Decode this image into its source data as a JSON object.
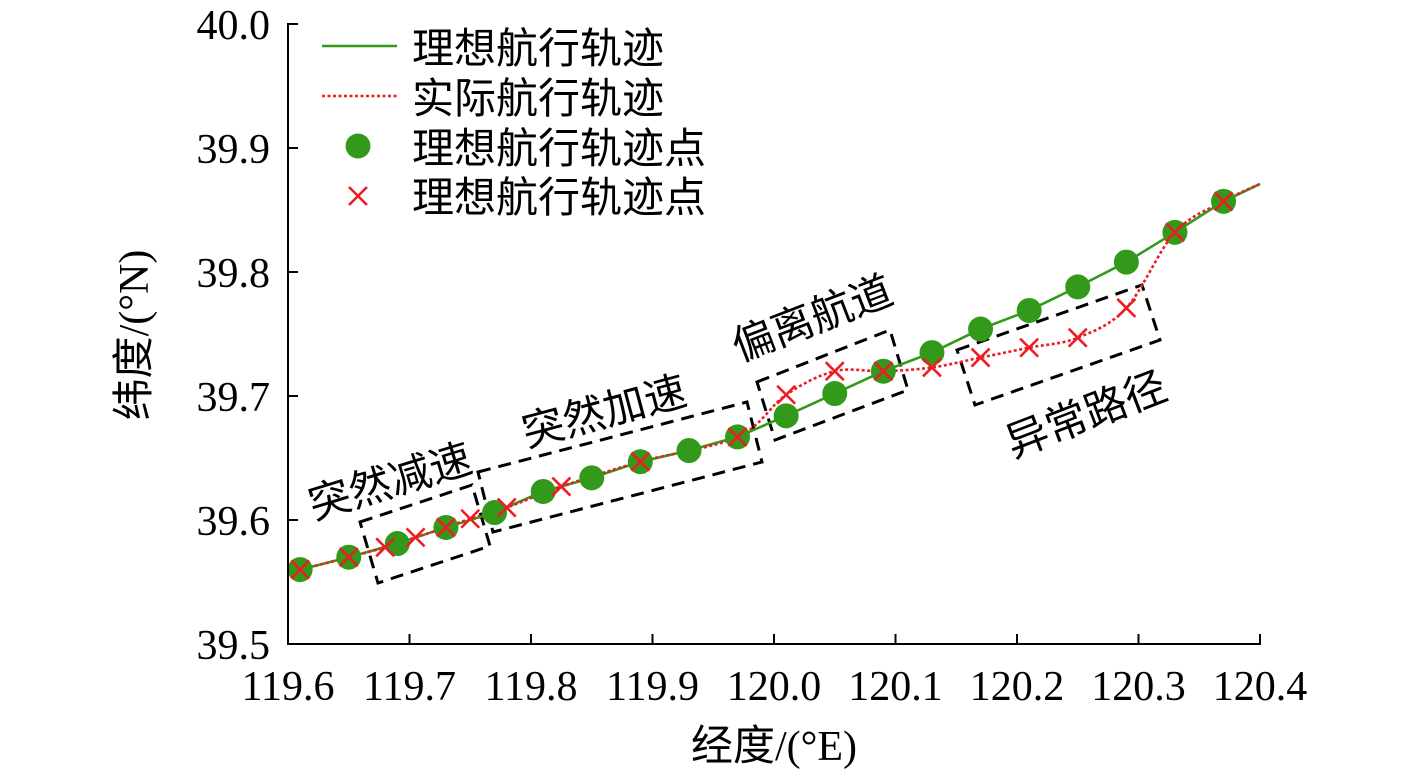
{
  "chart_data": {
    "type": "line",
    "xlabel": "经度/(°E)",
    "ylabel": "纬度/(°N)",
    "xlim": [
      119.6,
      120.4
    ],
    "ylim": [
      39.5,
      40.0
    ],
    "x_ticks": [
      "119.6",
      "119.7",
      "119.8",
      "119.9",
      "120.0",
      "120.1",
      "120.2",
      "120.3",
      "120.4"
    ],
    "y_ticks": [
      "39.5",
      "39.6",
      "39.7",
      "39.8",
      "39.9",
      "40.0"
    ],
    "grid": false,
    "legend_position": "top-left",
    "series": [
      {
        "name": "理想航行轨迹",
        "color": "#33991a",
        "line": "solid",
        "x": [
          119.6,
          119.61,
          119.65,
          119.69,
          119.73,
          119.77,
          119.81,
          119.85,
          119.89,
          119.93,
          119.97,
          120.01,
          120.05,
          120.09,
          120.13,
          120.17,
          120.21,
          120.25,
          120.29,
          120.33,
          120.37,
          120.4
        ],
        "y": [
          39.559,
          39.56,
          39.57,
          39.581,
          39.594,
          39.606,
          39.623,
          39.634,
          39.647,
          39.656,
          39.667,
          39.684,
          39.702,
          39.72,
          39.735,
          39.754,
          39.769,
          39.788,
          39.808,
          39.832,
          39.857,
          39.871
        ]
      },
      {
        "name": "实际航行轨迹",
        "color": "#ee1c25",
        "line": "dotted",
        "x": [
          119.6,
          119.61,
          119.65,
          119.68,
          119.705,
          119.73,
          119.75,
          119.78,
          119.825,
          119.89,
          119.97,
          120.01,
          120.05,
          120.09,
          120.13,
          120.17,
          120.21,
          120.25,
          120.29,
          120.33,
          120.37,
          120.4
        ],
        "y": [
          39.559,
          39.56,
          39.57,
          39.578,
          39.586,
          39.594,
          39.601,
          39.61,
          39.627,
          39.647,
          39.667,
          39.701,
          39.72,
          39.72,
          39.723,
          39.731,
          39.739,
          39.747,
          39.771,
          39.832,
          39.857,
          39.871
        ]
      },
      {
        "name": "理想航行轨迹点",
        "color": "#33991a",
        "marker": "circle",
        "x": [
          119.61,
          119.65,
          119.69,
          119.73,
          119.77,
          119.81,
          119.85,
          119.89,
          119.93,
          119.97,
          120.01,
          120.05,
          120.09,
          120.13,
          120.17,
          120.21,
          120.25,
          120.29,
          120.33,
          120.37
        ],
        "y": [
          39.56,
          39.57,
          39.581,
          39.594,
          39.606,
          39.623,
          39.634,
          39.647,
          39.656,
          39.667,
          39.684,
          39.702,
          39.72,
          39.735,
          39.754,
          39.769,
          39.788,
          39.808,
          39.832,
          39.857
        ]
      },
      {
        "name": "理想航行轨迹点",
        "color": "#ee1c25",
        "marker": "x",
        "x": [
          119.61,
          119.65,
          119.68,
          119.705,
          119.73,
          119.75,
          119.78,
          119.825,
          119.89,
          119.97,
          120.01,
          120.05,
          120.09,
          120.13,
          120.17,
          120.21,
          120.25,
          120.29,
          120.33,
          120.37
        ],
        "y": [
          39.56,
          39.57,
          39.578,
          39.586,
          39.594,
          39.601,
          39.61,
          39.627,
          39.647,
          39.667,
          39.701,
          39.72,
          39.72,
          39.723,
          39.731,
          39.739,
          39.747,
          39.771,
          39.832,
          39.857
        ]
      }
    ],
    "annotations": [
      "突然减速",
      "突然加速",
      "偏离航道",
      "异常路径"
    ]
  }
}
